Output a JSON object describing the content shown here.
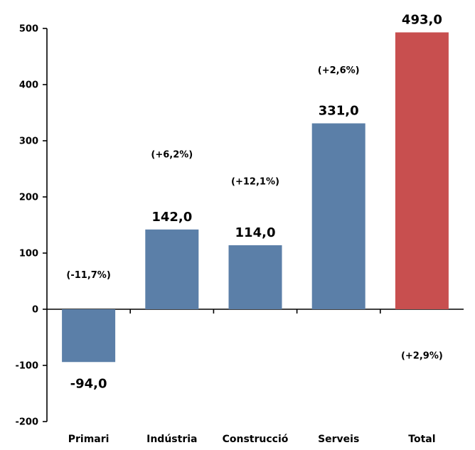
{
  "chart_data": {
    "type": "bar",
    "title": "",
    "xlabel": "",
    "ylabel": "",
    "ylim": [
      -200,
      500
    ],
    "yticks": [
      -200,
      -100,
      0,
      100,
      200,
      300,
      400,
      500
    ],
    "ytick_labels": [
      "-200",
      "-100",
      "0",
      "100",
      "200",
      "300",
      "400",
      "500"
    ],
    "categories": [
      "Primari",
      "Indústria",
      "Construcció",
      "Serveis",
      "Total"
    ],
    "values": [
      -94.0,
      142.0,
      114.0,
      331.0,
      493.0
    ],
    "value_labels": [
      "-94,0",
      "142,0",
      "114,0",
      "331,0",
      "493,0"
    ],
    "pct_labels": [
      "(-11,7%)",
      "(+6,2%)",
      "(+12,1%)",
      "(+2,6%)",
      "(+2,9%)"
    ],
    "bar_colors": [
      "#5b7fa8",
      "#5b7fa8",
      "#5b7fa8",
      "#5b7fa8",
      "#c84f4f"
    ],
    "grid": false,
    "legend": "none"
  }
}
